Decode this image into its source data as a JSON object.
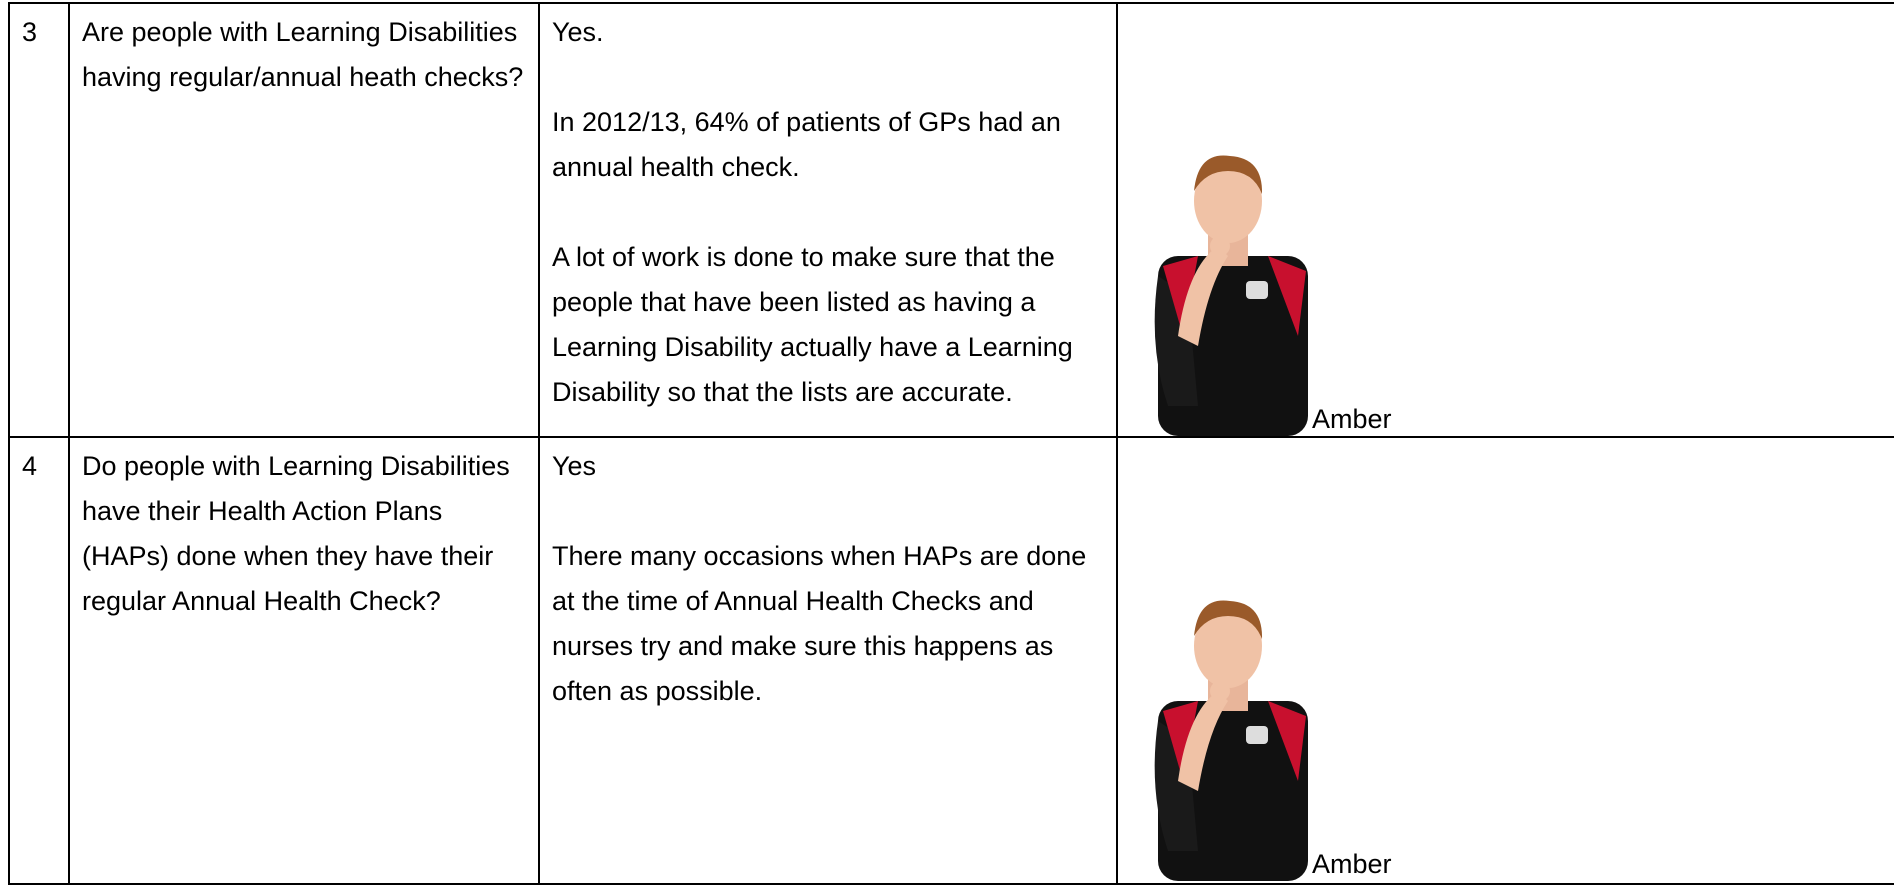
{
  "table": {
    "rows": [
      {
        "number": "3",
        "question": "Are people with Learning Disabilities having regular/annual heath checks?",
        "answer": [
          "Yes.",
          "In 2012/13, 64% of patients of GPs had an annual health check.",
          "A lot of work is done to make sure that the people that have been listed as having a Learning Disability actually have a Learning Disability so that the lists are accurate."
        ],
        "rating": "Amber"
      },
      {
        "number": "4",
        "question": "Do people with Learning Disabilities have their Health Action Plans (HAPs) done when they have their regular Annual Health Check?",
        "answer": [
          "Yes",
          "There many occasions when HAPs are done at the time of Annual Health Checks and nurses try and make sure this happens as often as possible."
        ],
        "rating": "Amber"
      }
    ]
  }
}
